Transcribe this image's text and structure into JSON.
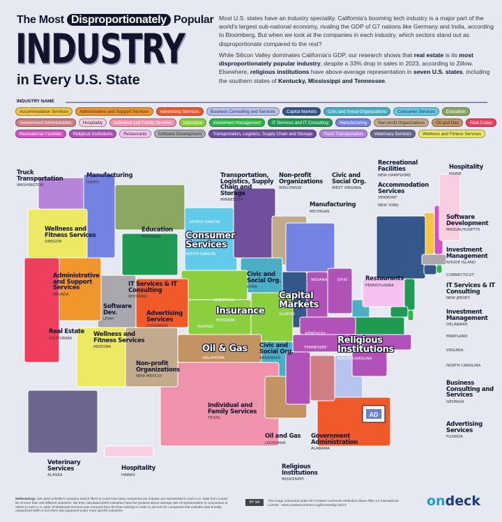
{
  "header": {
    "title_prefix": "The Most",
    "title_highlight": "Disproportionately",
    "title_suffix": "Popular",
    "title_main": "INDUSTRY",
    "title_sub": "in Every U.S. State"
  },
  "intro": {
    "p1": "Most U.S. states have an industry speciality. California's booming tech industry is a major part of the world's largest sub-national economy, rivaling the GDP of G7 nations like Germany and India, according to Bloomberg. But when we look at the companies in each industry, which sectors stand out as disproportionate compared to the rest?",
    "p2_a": "While Silicon Valley dominates California's GDP, our research shows that ",
    "p2_b": "real estate",
    "p2_c": " is its ",
    "p2_d": "most disproportionately popular industry",
    "p2_e": ", despite a 33% drop in sales in 2023, according to Zillow. Elsewhere, ",
    "p2_f": "religious institutions",
    "p2_g": " have above-average representation in ",
    "p2_h": "seven U.S. states",
    "p2_i": ", including the southern states of ",
    "p2_j": "Kentucky, Mississippi and Tennessee",
    "p2_k": "."
  },
  "legend": {
    "title": "INDUSTRY NAME",
    "items": [
      {
        "label": "Accommodation Services",
        "color": "#f5c542",
        "dark": true
      },
      {
        "label": "Administrative and Support Services",
        "color": "#f0962a",
        "dark": true
      },
      {
        "label": "Advertising Services",
        "color": "#f0592a"
      },
      {
        "label": "Business Consulting and Services",
        "color": "#b8c4f0",
        "dark": true
      },
      {
        "label": "Capital Markets",
        "color": "#35578a"
      },
      {
        "label": "Civic and Social Organizations",
        "color": "#4aaec4"
      },
      {
        "label": "Consumer Services",
        "color": "#62cbea",
        "dark": true
      },
      {
        "label": "Education",
        "color": "#8aa862"
      },
      {
        "label": "Government Administration",
        "color": "#cf7f84"
      },
      {
        "label": "Hospitality",
        "color": "#f8cfe0",
        "dark": true
      },
      {
        "label": "Individual and Family Services",
        "color": "#f192ac"
      },
      {
        "label": "Insurance",
        "color": "#8ccf3e"
      },
      {
        "label": "Investment Management",
        "color": "#2fb548"
      },
      {
        "label": "IT Services and IT Consulting",
        "color": "#1e9a52"
      },
      {
        "label": "Manufacturing",
        "color": "#7482e2"
      },
      {
        "label": "Non-profit Organizations",
        "color": "#c2ab8c",
        "dark": true
      },
      {
        "label": "Oil and Gas",
        "color": "#c39463",
        "dark": true
      },
      {
        "label": "Real Estate",
        "color": "#f03f5e"
      },
      {
        "label": "Recreational Facilities",
        "color": "#d453c4"
      },
      {
        "label": "Religious Institutions",
        "color": "#b152b9"
      },
      {
        "label": "Restaurants",
        "color": "#f5c2f2",
        "dark": true
      },
      {
        "label": "Software Development",
        "color": "#a9a9ad",
        "dark": true
      },
      {
        "label": "Transportation, Logistics, Supply Chain and Storage",
        "color": "#6f4f9e"
      },
      {
        "label": "Truck Transportation",
        "color": "#b384da"
      },
      {
        "label": "Veterinary Services",
        "color": "#6d6790"
      },
      {
        "label": "Wellness and Fitness Services",
        "color": "#ecea62",
        "dark": true
      }
    ]
  },
  "states": [
    {
      "state": "WASHINGTON",
      "industry": "Truck Transportation",
      "color": "#b384da"
    },
    {
      "state": "IDAHO",
      "industry": "Manufacturing",
      "color": "#7482e2"
    },
    {
      "state": "OREGON",
      "industry": "Wellness and Fitness Services",
      "color": "#ecea62"
    },
    {
      "state": "MONTANA",
      "industry": "Education",
      "color": "#8aa862"
    },
    {
      "state": "NORTH DAKOTA",
      "industry": "Consumer Services",
      "color": "#62cbea"
    },
    {
      "state": "SOUTH DAKOTA",
      "industry": "Consumer Services",
      "color": "#62cbea"
    },
    {
      "state": "MINNESOTA",
      "industry": "Transportation, Logistics, Supply Chain and Storage",
      "color": "#6f4f9e"
    },
    {
      "state": "WISCONSIN",
      "industry": "Non-profit Organizations",
      "color": "#c2ab8c"
    },
    {
      "state": "MICHIGAN",
      "industry": "Manufacturing",
      "color": "#7482e2"
    },
    {
      "state": "WEST VIRGINIA",
      "industry": "Civic and Social Org.",
      "color": "#4aaec4"
    },
    {
      "state": "NEW HAMPSHIRE",
      "industry": "Recreational Facilities",
      "color": "#d453c4"
    },
    {
      "state": "MAINE",
      "industry": "Hospitality",
      "color": "#f8cfe0"
    },
    {
      "state": "VERMONT",
      "industry": "Accommodation Services",
      "color": "#f5c542"
    },
    {
      "state": "NEW YORK",
      "industry": "Capital Markets",
      "color": "#35578a"
    },
    {
      "state": "MASSACHUSETTS",
      "industry": "Software Development",
      "color": "#a9a9ad"
    },
    {
      "state": "RHODE ISLAND",
      "industry": "Investment Management",
      "color": "#2fb548"
    },
    {
      "state": "CONNECTICUT",
      "industry": "Capital Markets",
      "color": "#35578a"
    },
    {
      "state": "NEW JERSEY",
      "industry": "IT Services & IT Consulting",
      "color": "#1e9a52"
    },
    {
      "state": "DELAWARE",
      "industry": "Investment Management",
      "color": "#2fb548"
    },
    {
      "state": "MARYLAND",
      "industry": "IT Services & IT Consulting",
      "color": "#1e9a52"
    },
    {
      "state": "VIRGINIA",
      "industry": "IT Services & IT Consulting",
      "color": "#1e9a52"
    },
    {
      "state": "NORTH CAROLINA",
      "industry": "Religious Institutions",
      "color": "#b152b9"
    },
    {
      "state": "GEORGIA",
      "industry": "Business Consulting and Services",
      "color": "#b8c4f0"
    },
    {
      "state": "FLORIDA",
      "industry": "Advertising Services",
      "color": "#f0592a"
    },
    {
      "state": "PENNSYLVANIA",
      "industry": "Restaurants",
      "color": "#f5c2f2"
    },
    {
      "state": "INDIANA",
      "industry": "Religious Institutions",
      "color": "#b152b9"
    },
    {
      "state": "OHIO",
      "industry": "Religious Institutions",
      "color": "#b152b9"
    },
    {
      "state": "ILLINOIS",
      "industry": "Capital Markets",
      "color": "#35578a"
    },
    {
      "state": "IOWA",
      "industry": "Civic and Social Org.",
      "color": "#4aaec4"
    },
    {
      "state": "NEBRASKA",
      "industry": "Insurance",
      "color": "#8ccf3e"
    },
    {
      "state": "KANSAS",
      "industry": "Insurance",
      "color": "#8ccf3e"
    },
    {
      "state": "MISSOURI",
      "industry": "Insurance",
      "color": "#8ccf3e"
    },
    {
      "state": "KENTUCKY",
      "industry": "Religious Institutions",
      "color": "#b152b9"
    },
    {
      "state": "TENNESSEE",
      "industry": "Religious Institutions",
      "color": "#b152b9"
    },
    {
      "state": "SOUTH CAROLINA",
      "industry": "Religious Institutions",
      "color": "#b152b9"
    },
    {
      "state": "ARKANSAS",
      "industry": "Civic and Social Org.",
      "color": "#4aaec4"
    },
    {
      "state": "OKLAHOMA",
      "industry": "Oil & Gas",
      "color": "#c39463"
    },
    {
      "state": "TEXAS",
      "industry": "Individual and Family Services",
      "color": "#f192ac"
    },
    {
      "state": "LOUISIANA",
      "industry": "Oil and Gas",
      "color": "#c39463"
    },
    {
      "state": "MISSISSIPPI",
      "industry": "Religious Institutions",
      "color": "#b152b9"
    },
    {
      "state": "ALABAMA",
      "industry": "Government Administration",
      "color": "#cf7f84"
    },
    {
      "state": "NEW MEXICO",
      "industry": "Non-profit Organizations",
      "color": "#c2ab8c"
    },
    {
      "state": "ARIZONA",
      "industry": "Wellness and Fitness Services",
      "color": "#ecea62"
    },
    {
      "state": "COLORADO",
      "industry": "Advertising Services",
      "color": "#f0592a"
    },
    {
      "state": "UTAH",
      "industry": "Software Dev.",
      "color": "#a9a9ad"
    },
    {
      "state": "WYOMING",
      "industry": "IT Services & IT Consulting",
      "color": "#1e9a52"
    },
    {
      "state": "NEVADA",
      "industry": "Administrative and Support Services",
      "color": "#f0962a"
    },
    {
      "state": "CALIFORNIA",
      "industry": "Real Estate",
      "color": "#f03f5e"
    },
    {
      "state": "ALASKA",
      "industry": "Veterinary Services",
      "color": "#6d6790"
    },
    {
      "state": "HAWAII",
      "industry": "Hospitality",
      "color": "#f8cfe0"
    }
  ],
  "icons": {
    "ad_badge": "AD"
  },
  "footer": {
    "methodology_label": "Methodology:",
    "methodology": "We used LinkedIn's company search filters to count how many companies per industry are represented in each U.S. state from a seed list of more than 100 different industries. We then calculated which industries have the greatest above-average rate of representation in comparison to others in each U.S. state. Professional Services was removed from the final rankings in order to account for companies that LinkedIn data broadly categorized within it but which also appeared under more specific industries.",
    "cc_badge": "BY SA",
    "license": "This image is licensed under the Creative Commons Attribution-Share Alike 4.0 International License - www.creativecommons.org/licenses/by-sa/4.0",
    "logo_a": "on",
    "logo_b": "deck"
  }
}
